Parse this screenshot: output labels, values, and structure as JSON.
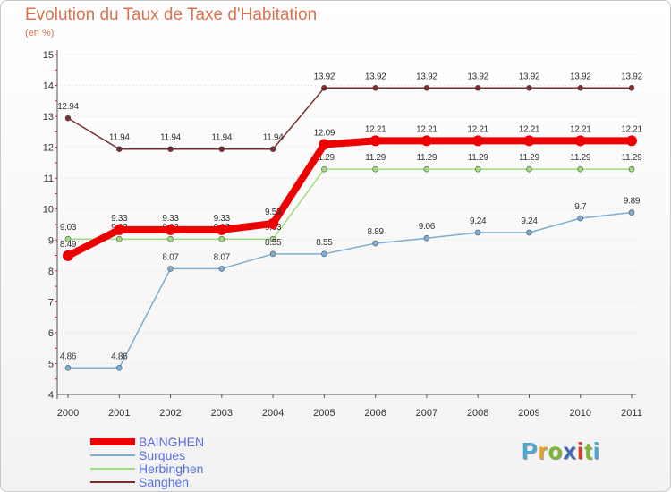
{
  "title": "Evolution du Taux de Taxe d'Habitation",
  "subtitle": "(en %)",
  "brand": [
    "P",
    "r",
    "o",
    "x",
    "i",
    "t",
    "i"
  ],
  "brand_colors": [
    "#4aa8d8",
    "#f0a020",
    "#79b82f",
    "#3c63b7",
    "#e03a2f",
    "#79b82f",
    "#4aa8d8"
  ],
  "chart_data": {
    "type": "line",
    "title": "Evolution du Taux de Taxe d'Habitation",
    "ylabel": "(en %)",
    "xlabel": "",
    "ylim": [
      4,
      15
    ],
    "yticks": [
      "4",
      "5",
      "6",
      "7",
      "8",
      "9",
      "10",
      "11",
      "12",
      "13",
      "14",
      "15"
    ],
    "categories": [
      "2000",
      "2001",
      "2002",
      "2003",
      "2004",
      "2005",
      "2006",
      "2007",
      "2008",
      "2009",
      "2010",
      "2011"
    ],
    "series": [
      {
        "name": "Sanghen",
        "color": "#7a2e2e",
        "values": [
          12.94,
          11.94,
          11.94,
          11.94,
          11.94,
          13.92,
          13.92,
          13.92,
          13.92,
          13.92,
          13.92,
          13.92
        ],
        "labels": [
          "12.94",
          "11.94",
          "11.94",
          "11.94",
          "11.94",
          "13.92",
          "13.92",
          "13.92",
          "13.92",
          "13.92",
          "13.92",
          "13.92"
        ]
      },
      {
        "name": "Herbinghen",
        "color": "#9fdc7d",
        "values": [
          9.03,
          9.03,
          9.03,
          9.03,
          9.03,
          11.29,
          11.29,
          11.29,
          11.29,
          11.29,
          11.29,
          11.29
        ],
        "labels": [
          "9.03",
          "9.03",
          "9.03",
          "9.03",
          "9.03",
          "11.29",
          "11.29",
          "11.29",
          "11.29",
          "11.29",
          "11.29",
          "11.29"
        ]
      },
      {
        "name": "Surques",
        "color": "#7aaed4",
        "values": [
          4.86,
          4.86,
          8.07,
          8.07,
          8.55,
          8.55,
          8.89,
          9.06,
          9.24,
          9.24,
          9.7,
          9.89
        ],
        "labels": [
          "4.86",
          "4.86",
          "8.07",
          "8.07",
          "8.55",
          "8.55",
          "8.89",
          "9.06",
          "9.24",
          "9.24",
          "9.7",
          "9.89"
        ]
      },
      {
        "name": "BAINGHEN",
        "color": "#ee0000",
        "values": [
          8.49,
          9.33,
          9.33,
          9.33,
          9.53,
          12.09,
          12.21,
          12.21,
          12.21,
          12.21,
          12.21,
          12.21
        ],
        "labels": [
          "8.49",
          "9.33",
          "9.33",
          "9.33",
          "9.53",
          "12.09",
          "12.21",
          "12.21",
          "12.21",
          "12.21",
          "12.21",
          "12.21"
        ]
      }
    ]
  },
  "legend": [
    {
      "name": "BAINGHEN",
      "color": "#ee0000",
      "thick": true
    },
    {
      "name": "Surques",
      "color": "#7aaed4",
      "thick": false
    },
    {
      "name": "Herbinghen",
      "color": "#9fdc7d",
      "thick": false
    },
    {
      "name": "Sanghen",
      "color": "#7a2e2e",
      "thick": false
    }
  ]
}
